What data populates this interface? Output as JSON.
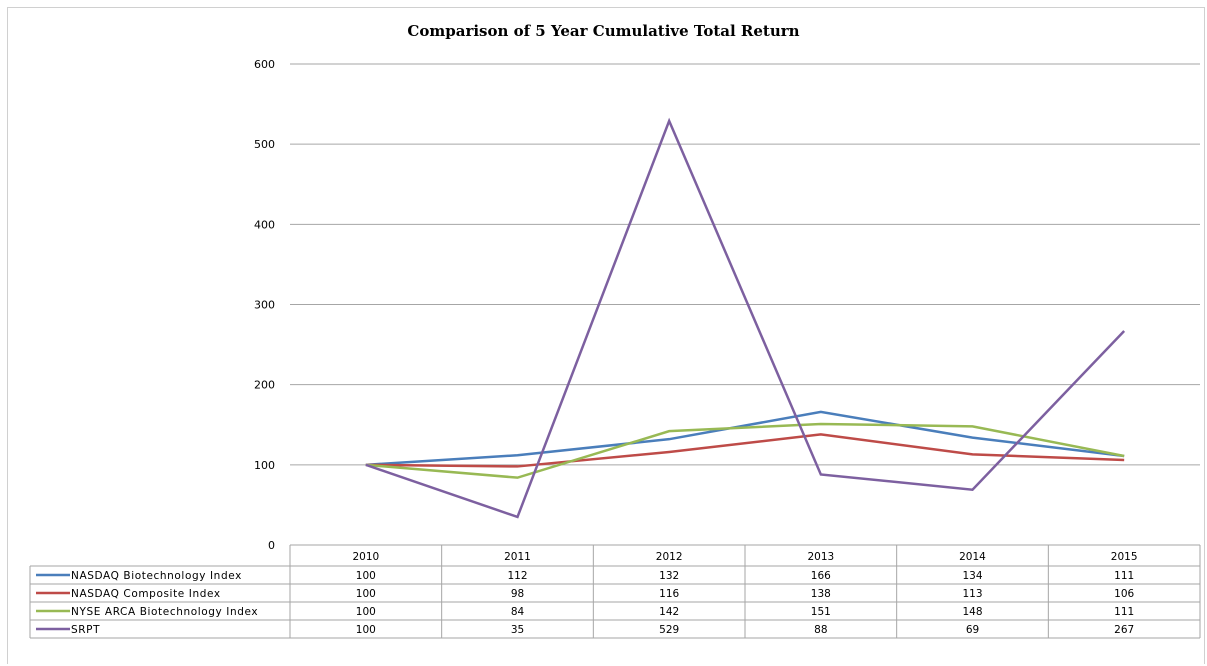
{
  "chart_data": {
    "type": "line",
    "title": "Comparison of 5 Year Cumulative Total Return",
    "xlabel": "",
    "ylabel": "",
    "ylim": [
      0,
      600
    ],
    "yticks": [
      0,
      100,
      200,
      300,
      400,
      500,
      600
    ],
    "grid": true,
    "legend": "data-table-below",
    "categories": [
      "2010",
      "2011",
      "2012",
      "2013",
      "2014",
      "2015"
    ],
    "series": [
      {
        "name": "NASDAQ Biotechnology Index",
        "color": "#4a7ebb",
        "values": [
          100,
          112,
          132,
          166,
          134,
          111
        ]
      },
      {
        "name": "NASDAQ Composite Index",
        "color": "#be4b48",
        "values": [
          100,
          98,
          116,
          138,
          113,
          106
        ]
      },
      {
        "name": "NYSE ARCA Biotechnology Index",
        "color": "#98b954",
        "values": [
          100,
          84,
          142,
          151,
          148,
          111
        ]
      },
      {
        "name": "SRPT",
        "color": "#7d60a0",
        "values": [
          100,
          35,
          529,
          88,
          69,
          267
        ]
      }
    ]
  }
}
